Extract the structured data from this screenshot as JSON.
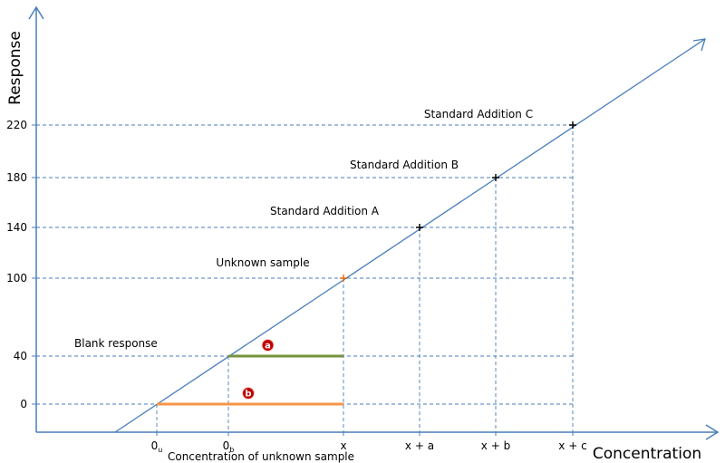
{
  "chart_data": {
    "type": "line",
    "title": "",
    "xlabel": "Concentration",
    "ylabel": "Response",
    "x_ticks": [
      {
        "label": "0",
        "sub": "u"
      },
      {
        "label": "0",
        "sub": "b"
      },
      {
        "label": "x",
        "sub": ""
      },
      {
        "label": "x + a",
        "sub": ""
      },
      {
        "label": "x + b",
        "sub": ""
      },
      {
        "label": "x + c",
        "sub": ""
      }
    ],
    "y_ticks": [
      "0",
      "40",
      "100",
      "140",
      "180",
      "220"
    ],
    "points": [
      {
        "x": "x",
        "y": 100,
        "label": "Unknown sample",
        "color": "#e36c0a"
      },
      {
        "x": "x + a",
        "y": 140,
        "label": "Standard Addition A",
        "color": "#000000"
      },
      {
        "x": "x + b",
        "y": 180,
        "label": "Standard Addition B",
        "color": "#000000"
      },
      {
        "x": "x + c",
        "y": 220,
        "label": "Standard Addition C",
        "color": "#000000"
      }
    ],
    "segments": [
      {
        "label": "a",
        "y": 40,
        "from": "0b",
        "to": "x",
        "color": "#77933c",
        "caption": "Blank response"
      },
      {
        "label": "b",
        "y": 0,
        "from": "0u",
        "to": "x",
        "color": "#f79646"
      }
    ],
    "x_annotation": "Concentration of unknown sample",
    "grid": "dashed guides",
    "colors": {
      "line": "#4a7ebb",
      "guide": "#4a7ebb",
      "orange": "#e36c0a",
      "green": "#77933c",
      "marker": "#c00000"
    }
  }
}
